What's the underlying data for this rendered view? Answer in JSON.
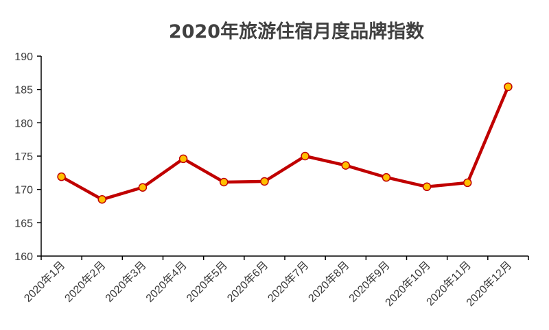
{
  "chart_data": {
    "type": "line",
    "title": "2020年旅游住宿月度品牌指数",
    "xlabel": "",
    "ylabel": "",
    "categories": [
      "2020年1月",
      "2020年2月",
      "2020年3月",
      "2020年4月",
      "2020年5月",
      "2020年6月",
      "2020年7月",
      "2020年8月",
      "2020年9月",
      "2020年10月",
      "2020年11月",
      "2020年12月"
    ],
    "series": [
      {
        "values": [
          171.9,
          168.5,
          170.3,
          174.6,
          171.1,
          171.2,
          175.0,
          173.6,
          171.8,
          170.4,
          171.0,
          185.4
        ]
      }
    ],
    "ylim": [
      160,
      190
    ],
    "yticks": [
      160,
      165,
      170,
      175,
      180,
      185,
      190
    ],
    "grid": false,
    "legend": "none",
    "colors": {
      "line": "#C00000",
      "marker_fill": "#FFC000",
      "marker_edge": "#C00000"
    }
  }
}
